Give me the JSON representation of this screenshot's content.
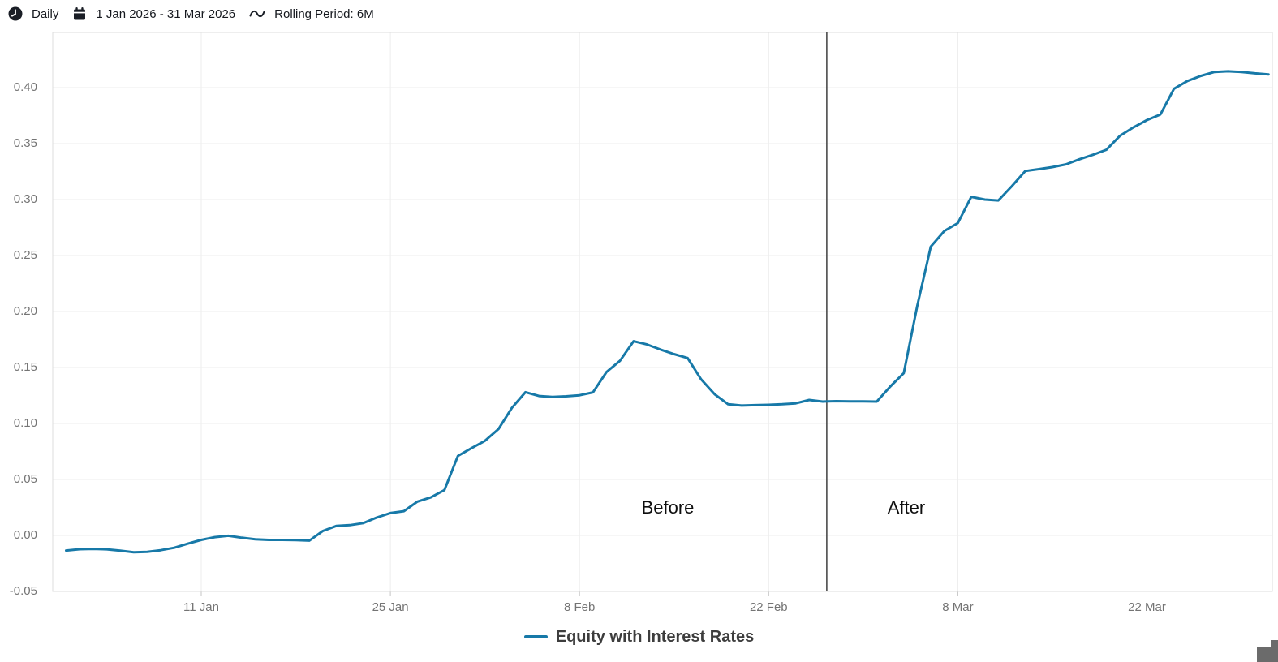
{
  "toolbar": {
    "frequency": "Daily",
    "date_range": "1 Jan 2026 - 31 Mar 2026",
    "rolling_period": "Rolling Period: 6M",
    "icons": {
      "frequency": "clock-icon",
      "date_range": "calendar-icon",
      "rolling_period": "wave-icon"
    }
  },
  "chart_data": {
    "type": "line",
    "title": "",
    "xlabel": "",
    "ylabel": "",
    "grid": true,
    "legend_position": "bottom-center",
    "ylim": [
      -0.05,
      0.4493
    ],
    "y_ticks": [
      -0.05,
      0.0,
      0.05,
      0.1,
      0.15,
      0.2,
      0.25,
      0.3,
      0.35,
      0.4
    ],
    "y_tick_labels": [
      "-0.05",
      "0.00",
      "0.05",
      "0.10",
      "0.15",
      "0.20",
      "0.25",
      "0.30",
      "0.35",
      "0.40"
    ],
    "x_tick_dates": [
      "2026-01-11",
      "2026-01-25",
      "2026-02-08",
      "2026-02-22",
      "2026-03-08",
      "2026-03-22"
    ],
    "x_tick_labels": [
      "11 Jan",
      "25 Jan",
      "8 Feb",
      "22 Feb",
      "8 Mar",
      "22 Mar"
    ],
    "annotations": {
      "before": "Before",
      "after": "After",
      "event_date": "2026-02-26"
    },
    "series": [
      {
        "name": "Equity with Interest Rates",
        "color": "#1779a8",
        "frequency": "daily",
        "start_date": "2026-01-01",
        "end_date": "2026-03-31",
        "values": [
          -0.0135,
          -0.0123,
          -0.012,
          -0.0124,
          -0.0136,
          -0.0151,
          -0.0146,
          -0.0132,
          -0.011,
          -0.0074,
          -0.004,
          -0.0015,
          -0.0003,
          -0.002,
          -0.0035,
          -0.004,
          -0.004,
          -0.0042,
          -0.0046,
          0.004,
          0.0085,
          0.0092,
          0.011,
          0.016,
          0.02,
          0.0217,
          0.0302,
          0.034,
          0.0405,
          0.071,
          0.078,
          0.0845,
          0.095,
          0.114,
          0.128,
          0.1246,
          0.1237,
          0.1243,
          0.1252,
          0.1278,
          0.146,
          0.156,
          0.1735,
          0.1706,
          0.166,
          0.162,
          0.1585,
          0.1395,
          0.1262,
          0.1172,
          0.116,
          0.1164,
          0.1167,
          0.1172,
          0.118,
          0.121,
          0.1196,
          0.1199,
          0.1198,
          0.1197,
          0.1196,
          0.133,
          0.145,
          0.205,
          0.258,
          0.272,
          0.279,
          0.3025,
          0.3,
          0.2992,
          0.312,
          0.3255,
          0.3272,
          0.329,
          0.3315,
          0.336,
          0.34,
          0.3445,
          0.357,
          0.3645,
          0.371,
          0.376,
          0.399,
          0.406,
          0.4105,
          0.414,
          0.4146,
          0.414,
          0.4128,
          0.4118
        ]
      }
    ],
    "colors": {
      "line": "#1779a8",
      "gridline": "#ededed",
      "frame": "#dcdcdc",
      "event_line": "#3f3f3f",
      "axis_text": "#747474"
    }
  }
}
